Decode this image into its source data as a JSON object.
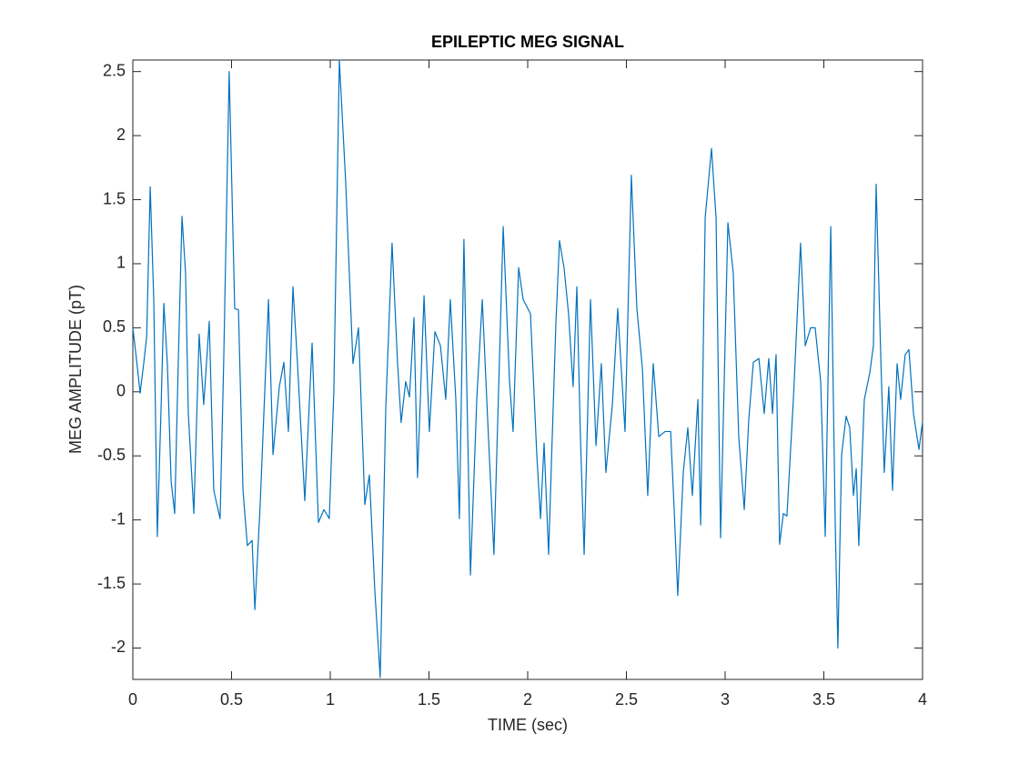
{
  "chart_data": {
    "type": "line",
    "title": "EPILEPTIC MEG SIGNAL",
    "x_label": "TIME (sec)",
    "y_label": "MEG AMPLITUDE (pT)",
    "xlim": [
      0,
      4
    ],
    "ylim": [
      -2.245,
      2.59
    ],
    "xticks": [
      0,
      0.5,
      1,
      1.5,
      2,
      2.5,
      3,
      3.5,
      4
    ],
    "yticks": [
      -2,
      -1.5,
      -1,
      -0.5,
      0,
      0.5,
      1,
      1.5,
      2,
      2.5
    ],
    "grid": false,
    "series": [
      {
        "name": "MEG",
        "color": "#0072bd",
        "x": [
          0,
          0.018,
          0.037,
          0.055,
          0.07,
          0.088,
          0.106,
          0.124,
          0.143,
          0.157,
          0.175,
          0.194,
          0.212,
          0.23,
          0.249,
          0.267,
          0.281,
          0.309,
          0.336,
          0.359,
          0.387,
          0.41,
          0.442,
          0.46,
          0.488,
          0.516,
          0.535,
          0.558,
          0.58,
          0.604,
          0.618,
          0.645,
          0.687,
          0.71,
          0.742,
          0.765,
          0.788,
          0.811,
          0.834,
          0.871,
          0.908,
          0.94,
          0.968,
          0.995,
          1.018,
          1.046,
          1.078,
          1.115,
          1.143,
          1.175,
          1.198,
          1.226,
          1.253,
          1.281,
          1.313,
          1.341,
          1.359,
          1.382,
          1.401,
          1.424,
          1.442,
          1.475,
          1.502,
          1.53,
          1.558,
          1.585,
          1.608,
          1.636,
          1.654,
          1.677,
          1.71,
          1.742,
          1.77,
          1.797,
          1.829,
          1.876,
          1.908,
          1.926,
          1.954,
          1.977,
          2.014,
          2.046,
          2.065,
          2.083,
          2.106,
          2.12,
          2.143,
          2.161,
          2.184,
          2.207,
          2.23,
          2.249,
          2.267,
          2.286,
          2.318,
          2.346,
          2.373,
          2.396,
          2.429,
          2.456,
          2.493,
          2.525,
          2.553,
          2.581,
          2.608,
          2.636,
          2.664,
          2.696,
          2.724,
          2.742,
          2.76,
          2.788,
          2.811,
          2.834,
          2.862,
          2.876,
          2.899,
          2.931,
          2.954,
          2.977,
          3.014,
          3.041,
          3.069,
          3.097,
          3.12,
          3.143,
          3.171,
          3.198,
          3.221,
          3.24,
          3.258,
          3.276,
          3.295,
          3.313,
          3.346,
          3.382,
          3.406,
          3.433,
          3.456,
          3.484,
          3.507,
          3.535,
          3.558,
          3.571,
          3.59,
          3.613,
          3.631,
          3.65,
          3.664,
          3.677,
          3.705,
          3.733,
          3.751,
          3.765,
          3.788,
          3.806,
          3.829,
          3.848,
          3.871,
          3.889,
          3.912,
          3.931,
          3.954,
          3.982,
          4.0
        ],
        "values": [
          0.5,
          0.26,
          -0.01,
          0.22,
          0.43,
          1.6,
          0.72,
          -1.13,
          -0.13,
          0.69,
          0.22,
          -0.7,
          -0.95,
          0.22,
          1.37,
          0.93,
          -0.17,
          -0.95,
          0.45,
          -0.1,
          0.55,
          -0.77,
          -0.99,
          0.22,
          2.5,
          0.65,
          0.64,
          -0.77,
          -1.2,
          -1.16,
          -1.7,
          -0.88,
          0.72,
          -0.49,
          0.04,
          0.23,
          -0.31,
          0.82,
          0.22,
          -0.85,
          0.38,
          -1.02,
          -0.92,
          -0.99,
          0,
          2.59,
          1.64,
          0.22,
          0.5,
          -0.88,
          -0.65,
          -1.56,
          -2.23,
          -0.13,
          1.16,
          0.22,
          -0.24,
          0.08,
          -0.04,
          0.58,
          -0.67,
          0.75,
          -0.31,
          0.47,
          0.36,
          -0.06,
          0.72,
          -0.06,
          -0.99,
          1.19,
          -1.43,
          -0.06,
          0.72,
          -0.21,
          -1.27,
          1.29,
          0.08,
          -0.31,
          0.97,
          0.72,
          0.61,
          -0.49,
          -0.99,
          -0.4,
          -1.27,
          -0.56,
          0.54,
          1.18,
          0.97,
          0.61,
          0.04,
          0.82,
          -0.35,
          -1.27,
          0.72,
          -0.42,
          0.22,
          -0.63,
          -0.1,
          0.65,
          -0.31,
          1.69,
          0.65,
          0.18,
          -0.81,
          0.22,
          -0.35,
          -0.31,
          -0.31,
          -0.92,
          -1.59,
          -0.63,
          -0.28,
          -0.81,
          -0.06,
          -1.04,
          1.36,
          1.9,
          1.36,
          -1.14,
          1.32,
          0.93,
          -0.35,
          -0.92,
          -0.21,
          0.23,
          0.26,
          -0.17,
          0.26,
          -0.17,
          0.29,
          -1.19,
          -0.95,
          -0.97,
          -0.05,
          1.16,
          0.36,
          0.5,
          0.5,
          0.08,
          -1.13,
          1.29,
          -1.06,
          -2.0,
          -0.49,
          -0.19,
          -0.28,
          -0.81,
          -0.6,
          -1.2,
          -0.06,
          0.15,
          0.36,
          1.62,
          0.29,
          -0.63,
          0.04,
          -0.77,
          0.22,
          -0.06,
          0.29,
          0.33,
          -0.17,
          -0.45,
          -0.23
        ]
      }
    ]
  }
}
